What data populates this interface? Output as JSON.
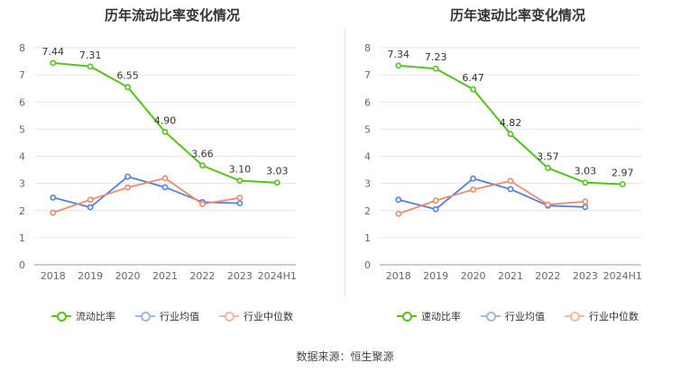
{
  "colors": {
    "primary": "#52c41a",
    "industry_avg": "#4f7ee8",
    "industry_median": "#f08a6b",
    "grid": "#e6e6e6",
    "axis_text": "#666666"
  },
  "source": "数据来源：恒生聚源",
  "chart_data": [
    {
      "type": "line",
      "title": "历年流动比率变化情况",
      "categories": [
        "2018",
        "2019",
        "2020",
        "2021",
        "2022",
        "2023",
        "2024H1"
      ],
      "ylim": [
        0,
        8
      ],
      "yticks": [
        "0",
        "1",
        "2",
        "3",
        "4",
        "5",
        "6",
        "7",
        "8"
      ],
      "series": [
        {
          "name": "流动比率",
          "values": [
            7.44,
            7.31,
            6.55,
            4.9,
            3.66,
            3.1,
            3.03
          ],
          "labels": [
            "7.44",
            "7.31",
            "6.55",
            "4.90",
            "3.66",
            "3.10",
            "3.03"
          ],
          "color": "#52c41a"
        },
        {
          "name": "行业均值",
          "values": [
            2.48,
            2.12,
            3.25,
            2.86,
            2.31,
            2.27,
            null
          ],
          "color": "#4f7ee8"
        },
        {
          "name": "行业中位数",
          "values": [
            1.92,
            2.4,
            2.85,
            3.19,
            2.24,
            2.47,
            null
          ],
          "color": "#f08a6b"
        }
      ]
    },
    {
      "type": "line",
      "title": "历年速动比率变化情况",
      "categories": [
        "2018",
        "2019",
        "2020",
        "2021",
        "2022",
        "2023",
        "2024H1"
      ],
      "ylim": [
        0,
        8
      ],
      "yticks": [
        "0",
        "1",
        "2",
        "3",
        "4",
        "5",
        "6",
        "7",
        "8"
      ],
      "series": [
        {
          "name": "速动比率",
          "values": [
            7.34,
            7.23,
            6.47,
            4.82,
            3.57,
            3.03,
            2.97
          ],
          "labels": [
            "7.34",
            "7.23",
            "6.47",
            "4.82",
            "3.57",
            "3.03",
            "2.97"
          ],
          "color": "#52c41a"
        },
        {
          "name": "行业均值",
          "values": [
            2.4,
            2.05,
            3.18,
            2.79,
            2.18,
            2.13,
            null
          ],
          "color": "#4f7ee8"
        },
        {
          "name": "行业中位数",
          "values": [
            1.88,
            2.37,
            2.77,
            3.09,
            2.22,
            2.33,
            null
          ],
          "color": "#f08a6b"
        }
      ]
    }
  ]
}
